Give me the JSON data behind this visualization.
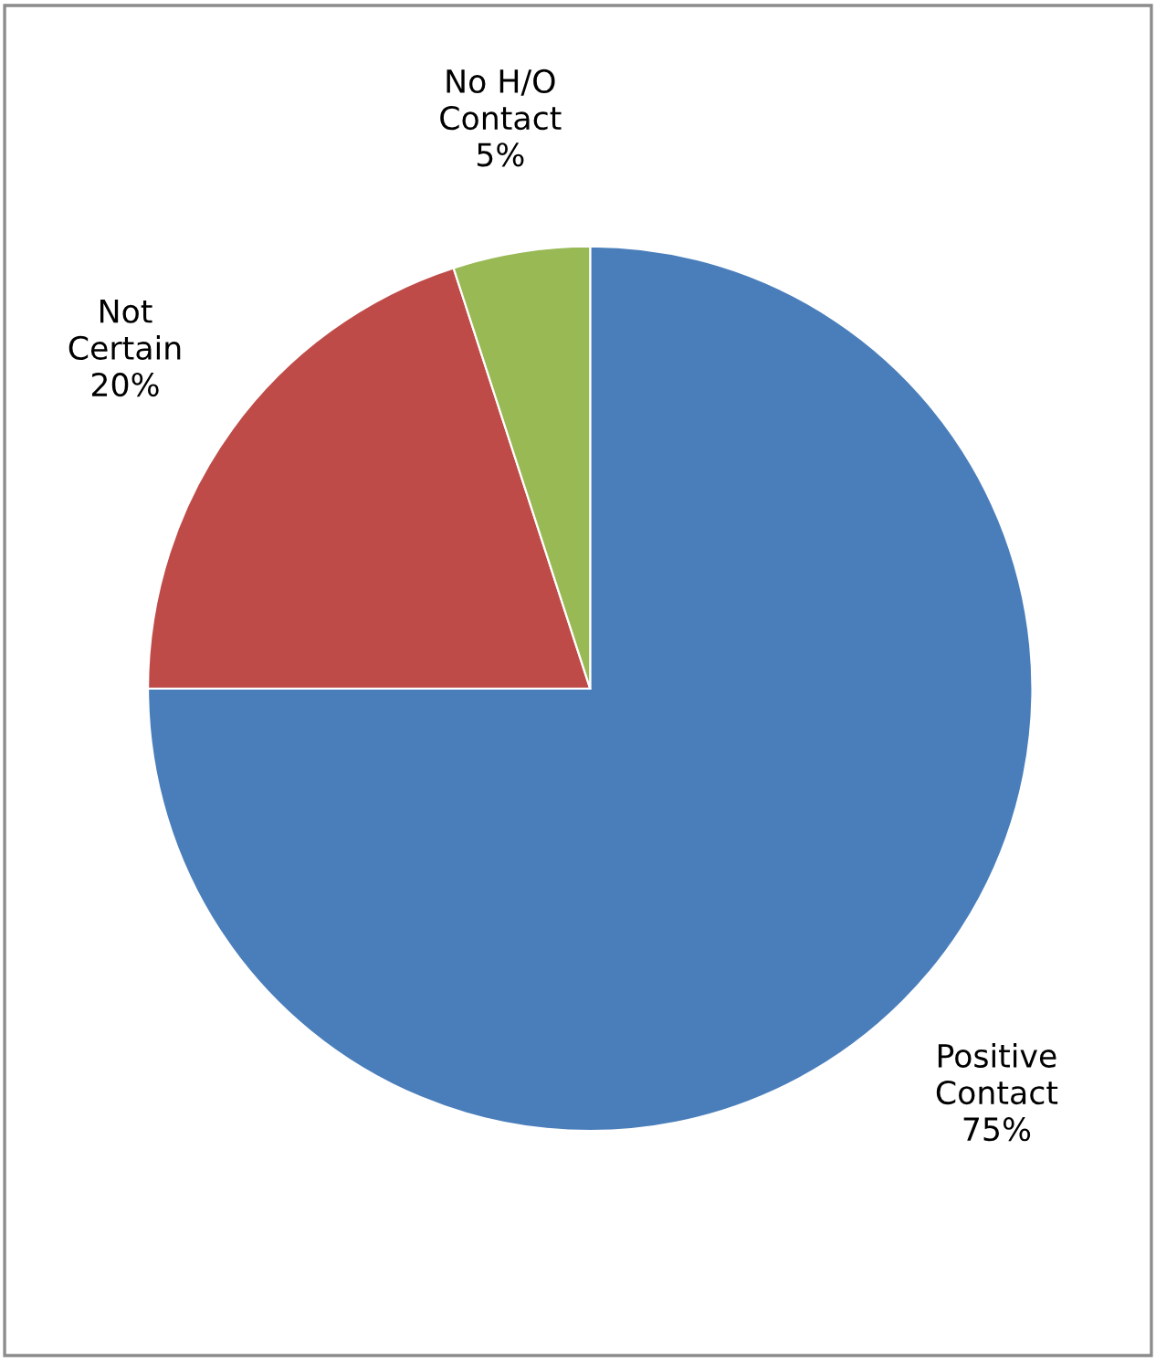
{
  "chart_data": {
    "type": "pie",
    "categories": [
      "Positive Contact",
      "Not Certain",
      "No H/O Contact"
    ],
    "values": [
      75,
      20,
      5
    ],
    "value_labels": [
      "75%",
      "20%",
      "5%"
    ],
    "colors": [
      "#4a7ebb",
      "#be4b48",
      "#98b954"
    ]
  }
}
